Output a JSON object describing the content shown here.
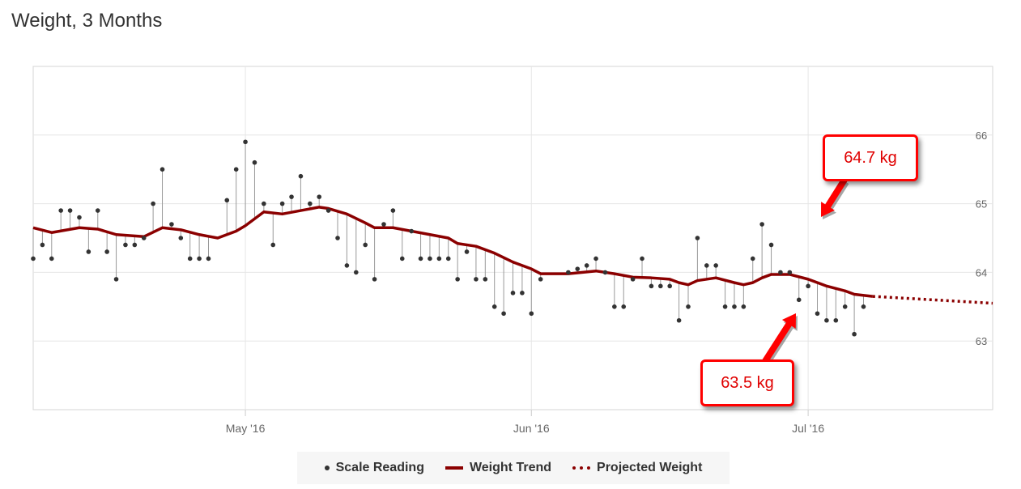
{
  "title": "Weight, 3 Months",
  "colors": {
    "trend": "#8b0000",
    "scale_dot": "#333333",
    "ghost_dot": "#dddddd",
    "callout": "#ff0000"
  },
  "legend": {
    "scale": "Scale Reading",
    "trend": "Weight Trend",
    "projected": "Projected Weight"
  },
  "callouts": {
    "high": "64.7 kg",
    "low": "63.5 kg"
  },
  "chart_data": {
    "type": "line",
    "x_range": [
      "2016-04-08",
      "2016-07-21"
    ],
    "ylim": [
      62,
      67
    ],
    "y_ticks": [
      63,
      64,
      65,
      66
    ],
    "x_ticks": [
      {
        "date": "2016-05-01",
        "label": "May '16"
      },
      {
        "date": "2016-06-01",
        "label": "Jun '16"
      },
      {
        "date": "2016-07-01",
        "label": "Jul '16"
      }
    ],
    "grid": true,
    "legend_position": "bottom-center",
    "series": [
      {
        "name": "Scale Reading",
        "type": "scatter",
        "points": [
          [
            "2016-04-08",
            64.2
          ],
          [
            "2016-04-09",
            64.4
          ],
          [
            "2016-04-10",
            64.2
          ],
          [
            "2016-04-11",
            64.9
          ],
          [
            "2016-04-12",
            64.9
          ],
          [
            "2016-04-13",
            64.8
          ],
          [
            "2016-04-14",
            64.3
          ],
          [
            "2016-04-15",
            64.9
          ],
          [
            "2016-04-16",
            64.3
          ],
          [
            "2016-04-17",
            63.9
          ],
          [
            "2016-04-18",
            64.4
          ],
          [
            "2016-04-19",
            64.4
          ],
          [
            "2016-04-20",
            64.5
          ],
          [
            "2016-04-21",
            65.0
          ],
          [
            "2016-04-22",
            65.5
          ],
          [
            "2016-04-23",
            64.7
          ],
          [
            "2016-04-24",
            64.5
          ],
          [
            "2016-04-25",
            64.2
          ],
          [
            "2016-04-26",
            64.2
          ],
          [
            "2016-04-27",
            64.2
          ],
          [
            "2016-04-29",
            65.05
          ],
          [
            "2016-04-30",
            65.5
          ],
          [
            "2016-05-01",
            65.9
          ],
          [
            "2016-05-02",
            65.6
          ],
          [
            "2016-05-03",
            65.0
          ],
          [
            "2016-05-04",
            64.4
          ],
          [
            "2016-05-05",
            65.0
          ],
          [
            "2016-05-06",
            65.1
          ],
          [
            "2016-05-07",
            65.4
          ],
          [
            "2016-05-08",
            65.0
          ],
          [
            "2016-05-09",
            65.1
          ],
          [
            "2016-05-10",
            64.9
          ],
          [
            "2016-05-11",
            64.5
          ],
          [
            "2016-05-12",
            64.1
          ],
          [
            "2016-05-13",
            64.0
          ],
          [
            "2016-05-14",
            64.4
          ],
          [
            "2016-05-15",
            63.9
          ],
          [
            "2016-05-16",
            64.7
          ],
          [
            "2016-05-17",
            64.9
          ],
          [
            "2016-05-18",
            64.2
          ],
          [
            "2016-05-19",
            64.6
          ],
          [
            "2016-05-20",
            64.2
          ],
          [
            "2016-05-21",
            64.2
          ],
          [
            "2016-05-22",
            64.2
          ],
          [
            "2016-05-23",
            64.2
          ],
          [
            "2016-05-24",
            63.9
          ],
          [
            "2016-05-25",
            64.3
          ],
          [
            "2016-05-26",
            63.9
          ],
          [
            "2016-05-27",
            63.9
          ],
          [
            "2016-05-28",
            63.5
          ],
          [
            "2016-05-29",
            63.4
          ],
          [
            "2016-05-30",
            63.7
          ],
          [
            "2016-05-31",
            63.7
          ],
          [
            "2016-06-01",
            63.4
          ],
          [
            "2016-06-02",
            63.9
          ],
          [
            "2016-06-05",
            64.0
          ],
          [
            "2016-06-06",
            64.05
          ],
          [
            "2016-06-07",
            64.1
          ],
          [
            "2016-06-08",
            64.2
          ],
          [
            "2016-06-09",
            64.0
          ],
          [
            "2016-06-10",
            63.5
          ],
          [
            "2016-06-11",
            63.5
          ],
          [
            "2016-06-12",
            63.9
          ],
          [
            "2016-06-13",
            64.2
          ],
          [
            "2016-06-14",
            63.8
          ],
          [
            "2016-06-15",
            63.8
          ],
          [
            "2016-06-16",
            63.8
          ],
          [
            "2016-06-17",
            63.3
          ],
          [
            "2016-06-18",
            63.5
          ],
          [
            "2016-06-19",
            64.5
          ],
          [
            "2016-06-20",
            64.1
          ],
          [
            "2016-06-21",
            64.1
          ],
          [
            "2016-06-22",
            63.5
          ],
          [
            "2016-06-23",
            63.5
          ],
          [
            "2016-06-24",
            63.5
          ],
          [
            "2016-06-25",
            64.2
          ],
          [
            "2016-06-26",
            64.7
          ],
          [
            "2016-06-27",
            64.4
          ],
          [
            "2016-06-28",
            64.0
          ],
          [
            "2016-06-29",
            64.0
          ],
          [
            "2016-06-30",
            63.6
          ],
          [
            "2016-07-01",
            63.8
          ],
          [
            "2016-07-02",
            63.4
          ],
          [
            "2016-07-03",
            63.3
          ],
          [
            "2016-07-04",
            63.3
          ],
          [
            "2016-07-05",
            63.5
          ],
          [
            "2016-07-06",
            63.1
          ],
          [
            "2016-07-07",
            63.5
          ]
        ]
      },
      {
        "name": "Weight Trend",
        "type": "line",
        "points": [
          [
            "2016-04-08",
            64.65
          ],
          [
            "2016-04-10",
            64.58
          ],
          [
            "2016-04-13",
            64.65
          ],
          [
            "2016-04-15",
            64.63
          ],
          [
            "2016-04-17",
            64.55
          ],
          [
            "2016-04-20",
            64.52
          ],
          [
            "2016-04-22",
            64.65
          ],
          [
            "2016-04-24",
            64.62
          ],
          [
            "2016-04-26",
            64.55
          ],
          [
            "2016-04-28",
            64.5
          ],
          [
            "2016-04-30",
            64.6
          ],
          [
            "2016-05-01",
            64.68
          ],
          [
            "2016-05-03",
            64.88
          ],
          [
            "2016-05-05",
            64.85
          ],
          [
            "2016-05-07",
            64.9
          ],
          [
            "2016-05-09",
            64.95
          ],
          [
            "2016-05-10",
            64.93
          ],
          [
            "2016-05-12",
            64.85
          ],
          [
            "2016-05-14",
            64.72
          ],
          [
            "2016-05-15",
            64.65
          ],
          [
            "2016-05-17",
            64.65
          ],
          [
            "2016-05-19",
            64.6
          ],
          [
            "2016-05-21",
            64.55
          ],
          [
            "2016-05-23",
            64.5
          ],
          [
            "2016-05-24",
            64.42
          ],
          [
            "2016-05-26",
            64.38
          ],
          [
            "2016-05-28",
            64.28
          ],
          [
            "2016-05-30",
            64.15
          ],
          [
            "2016-06-01",
            64.05
          ],
          [
            "2016-06-02",
            63.98
          ],
          [
            "2016-06-05",
            63.98
          ],
          [
            "2016-06-08",
            64.02
          ],
          [
            "2016-06-10",
            63.98
          ],
          [
            "2016-06-12",
            63.93
          ],
          [
            "2016-06-14",
            63.92
          ],
          [
            "2016-06-16",
            63.9
          ],
          [
            "2016-06-17",
            63.85
          ],
          [
            "2016-06-18",
            63.82
          ],
          [
            "2016-06-19",
            63.88
          ],
          [
            "2016-06-21",
            63.92
          ],
          [
            "2016-06-23",
            63.85
          ],
          [
            "2016-06-24",
            63.82
          ],
          [
            "2016-06-25",
            63.85
          ],
          [
            "2016-06-26",
            63.92
          ],
          [
            "2016-06-27",
            63.97
          ],
          [
            "2016-06-29",
            63.97
          ],
          [
            "2016-07-01",
            63.9
          ],
          [
            "2016-07-03",
            63.8
          ],
          [
            "2016-07-05",
            63.73
          ],
          [
            "2016-07-06",
            63.68
          ],
          [
            "2016-07-08",
            63.65
          ]
        ]
      },
      {
        "name": "Projected Weight",
        "type": "line",
        "points": [
          [
            "2016-07-08",
            63.65
          ],
          [
            "2016-07-21",
            63.55
          ]
        ]
      }
    ]
  }
}
